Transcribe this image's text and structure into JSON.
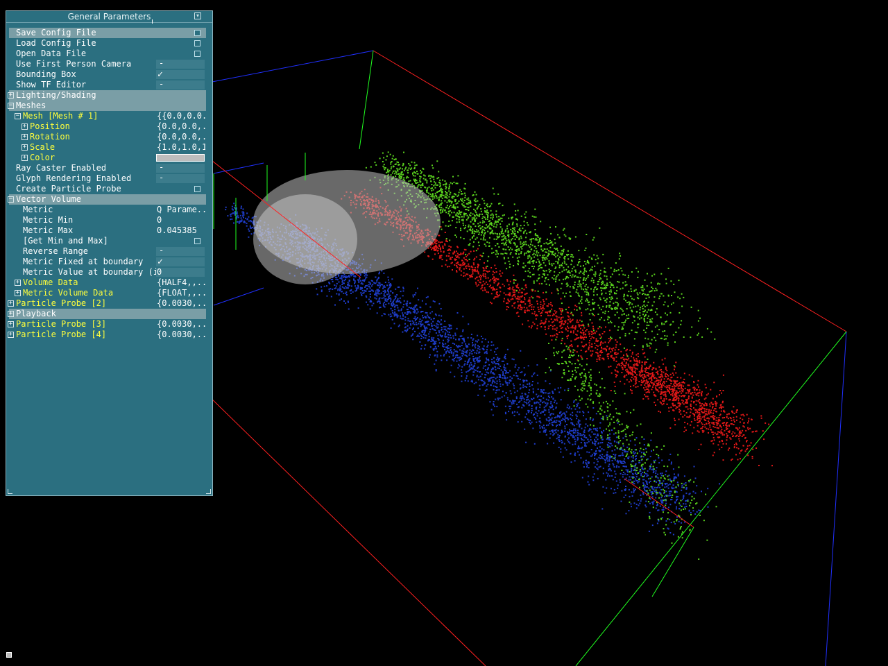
{
  "panel": {
    "title": "General Parameters",
    "rows": [
      {
        "label": "Save Config File",
        "indent": 0,
        "kind": "button"
      },
      {
        "label": "Load Config File",
        "indent": 0,
        "kind": "button"
      },
      {
        "label": "Open Data File",
        "indent": 0,
        "kind": "button"
      },
      {
        "label": "Use First Person Camera",
        "indent": 0,
        "kind": "bool",
        "checked": false
      },
      {
        "label": "Bounding Box",
        "indent": 0,
        "kind": "bool",
        "checked": true
      },
      {
        "label": "Show TF Editor",
        "indent": 0,
        "kind": "bool",
        "checked": false
      },
      {
        "label": "Lighting/Shading",
        "indent": 0,
        "kind": "group",
        "expanded": false,
        "header": true
      },
      {
        "label": "Meshes",
        "indent": 0,
        "kind": "group",
        "expanded": true,
        "header": true
      },
      {
        "label": "Mesh [Mesh # 1]",
        "indent": 1,
        "kind": "group",
        "expanded": true,
        "yellow": true,
        "value": "{{0.0,0.0..."
      },
      {
        "label": "Position",
        "indent": 2,
        "kind": "group",
        "expanded": false,
        "yellow": true,
        "value": "{0.0,0.0,..."
      },
      {
        "label": "Rotation",
        "indent": 2,
        "kind": "group",
        "expanded": false,
        "yellow": true,
        "value": "{0.0,0.0,..."
      },
      {
        "label": "Scale",
        "indent": 2,
        "kind": "group",
        "expanded": false,
        "yellow": true,
        "value": "{1.0,1.0,1..."
      },
      {
        "label": "Color",
        "indent": 2,
        "kind": "color",
        "expanded": false,
        "yellow": true
      },
      {
        "label": "Ray Caster Enabled",
        "indent": 0,
        "kind": "bool",
        "checked": false
      },
      {
        "label": "Glyph Rendering Enabled",
        "indent": 0,
        "kind": "bool",
        "checked": false
      },
      {
        "label": "Create Particle Probe",
        "indent": 0,
        "kind": "button"
      },
      {
        "label": "Vector Volume",
        "indent": 0,
        "kind": "group",
        "expanded": true,
        "header": true
      },
      {
        "label": "Metric",
        "indent": 1,
        "kind": "value",
        "value": "Q Parame..."
      },
      {
        "label": "Metric Min",
        "indent": 1,
        "kind": "value",
        "value": "0"
      },
      {
        "label": "Metric Max",
        "indent": 1,
        "kind": "value",
        "value": "0.045385"
      },
      {
        "label": "[Get Min and Max]",
        "indent": 1,
        "kind": "button"
      },
      {
        "label": "Reverse Range",
        "indent": 1,
        "kind": "bool",
        "checked": false
      },
      {
        "label": "Metric Fixed at boundary",
        "indent": 1,
        "kind": "bool",
        "checked": true
      },
      {
        "label": "Metric Value at boundary (if ..",
        "indent": 1,
        "kind": "value",
        "value": "0",
        "box": true
      },
      {
        "label": "Volume Data",
        "indent": 1,
        "kind": "group",
        "expanded": false,
        "yellow": true,
        "value": "{HALF4,,..."
      },
      {
        "label": "Metric Volume Data",
        "indent": 1,
        "kind": "group",
        "expanded": false,
        "yellow": true,
        "value": "{FLOAT,,..."
      },
      {
        "label": "Particle Probe [2]",
        "indent": 0,
        "kind": "group",
        "expanded": false,
        "yellow": true,
        "value": "{0.0030,..."
      },
      {
        "label": "Playback",
        "indent": 0,
        "kind": "group",
        "expanded": false,
        "header": true
      },
      {
        "label": "Particle Probe [3]",
        "indent": 0,
        "kind": "group",
        "expanded": false,
        "yellow": true,
        "value": "{0.0030,..."
      },
      {
        "label": "Particle Probe [4]",
        "indent": 0,
        "kind": "group",
        "expanded": false,
        "yellow": true,
        "value": "{0.0030,..."
      }
    ]
  },
  "scene": {
    "particle_colors": {
      "red": "#e01818",
      "green": "#5ad21e",
      "blue": "#1e3cc8"
    },
    "bbox_colors": {
      "x": "#ff2020",
      "y": "#20ff20",
      "z": "#2030ff"
    },
    "mesh_color": "#bdbdbd"
  }
}
